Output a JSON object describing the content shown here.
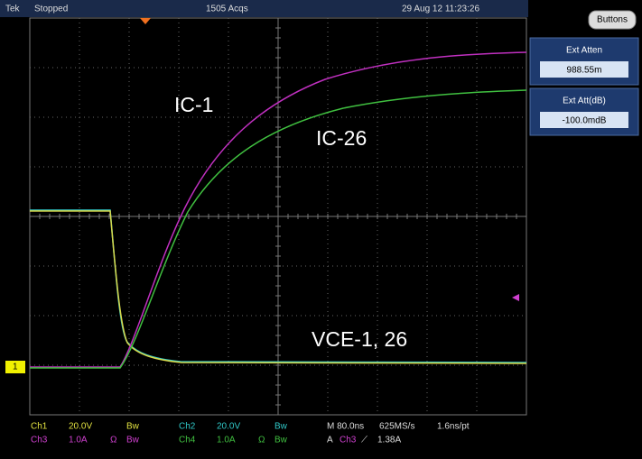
{
  "header": {
    "brand": "Tek",
    "status": "Stopped",
    "acquisitions": "1505 Acqs",
    "timestamp": "29 Aug 12 11:23:26",
    "button": "Buttons"
  },
  "side_panel": [
    {
      "label": "Ext Atten",
      "value": "988.55m"
    },
    {
      "label": "Ext Att(dB)",
      "value": "-100.0mdB"
    }
  ],
  "annotations": [
    "IC-1",
    "IC-26",
    "VCE-1, 26"
  ],
  "ground_marker": "1",
  "channels": [
    {
      "name": "Ch1",
      "scale": "20.0V",
      "bw": "Bw"
    },
    {
      "name": "Ch2",
      "scale": "20.0V",
      "bw": "Bw"
    },
    {
      "name": "Ch3",
      "scale": "1.0A",
      "coupling": "Ω",
      "bw": "Bw"
    },
    {
      "name": "Ch4",
      "scale": "1.0A",
      "coupling": "Ω",
      "bw": "Bw"
    }
  ],
  "timebase": {
    "horizontal": "M 80.0ns",
    "rate": "625MS/s",
    "resolution": "1.6ns/pt"
  },
  "trigger": {
    "mode": "A",
    "source": "Ch3",
    "slope": "⟋",
    "level": "1.38A"
  }
}
